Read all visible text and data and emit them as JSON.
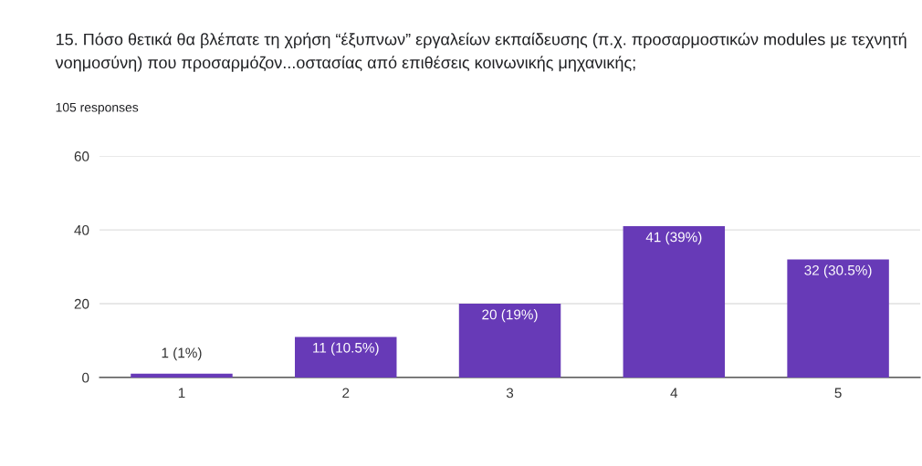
{
  "chart_data": {
    "type": "bar",
    "title": "15. Πόσο θετικά θα βλέπατε τη χρήση “έξυπνων” εργαλείων εκπαίδευσης (π.χ. προσαρμοστικών modules με τεχνητή νοημοσύνη) που προσαρμόζον...οστασίας από επιθέσεις κοινωνικής μηχανικής;",
    "subtitle": "105 responses",
    "categories": [
      "1",
      "2",
      "3",
      "4",
      "5"
    ],
    "values": [
      1,
      11,
      20,
      41,
      32
    ],
    "value_labels": [
      "1 (1%)",
      "11 (10.5%)",
      "20 (19%)",
      "41 (39%)",
      "32 (30.5%)"
    ],
    "color": "#673ab7",
    "ylim": [
      0,
      60
    ],
    "yticks": [
      0,
      20,
      40,
      60
    ],
    "grid": "y"
  }
}
